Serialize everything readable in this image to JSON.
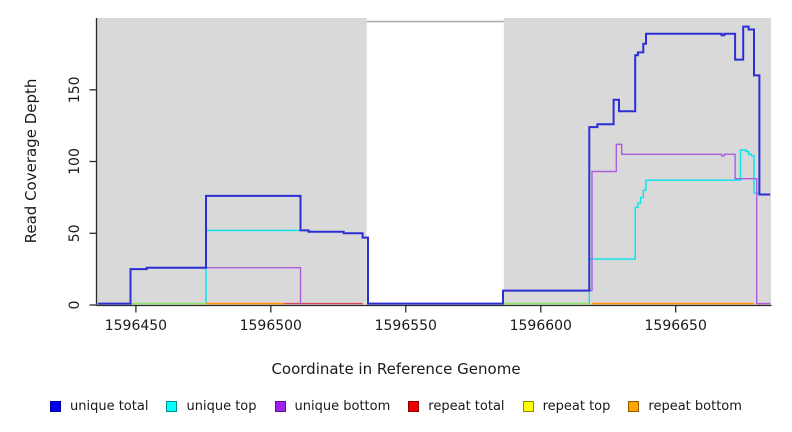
{
  "chart_data": {
    "type": "line",
    "subtype": "step-coverage",
    "title": "",
    "xlabel": "Coordinate in Reference Genome",
    "ylabel": "Read Coverage Depth",
    "xlim": [
      1596435.6,
      1596685.3
    ],
    "ylim": [
      0,
      200
    ],
    "x_ticks": [
      1596450,
      1596500,
      1596550,
      1596600,
      1596650
    ],
    "y_ticks": [
      0,
      50,
      100,
      150
    ],
    "grid": false,
    "legend_position": "bottom",
    "plot_bg": "#ffffff",
    "shaded_region_color": "#d9d9d9",
    "shaded_regions": [
      {
        "start": 1596435.6,
        "end": 1596535.5
      },
      {
        "start": 1596586.3,
        "end": 1596685.3
      }
    ],
    "gap_top_line": {
      "start": 1596535.5,
      "end": 1596586.3,
      "value": 197.5,
      "color": "#b0b0b0"
    },
    "axis_color": "#2b2b2b",
    "series": [
      {
        "name": "unique top",
        "color": "#00e6ee",
        "width": 1.4,
        "opacity": 1,
        "segments": [
          [
            [
              1596448,
              1
            ],
            [
              1596476,
              52
            ],
            [
              1596514,
              51
            ],
            [
              1596527,
              50
            ],
            [
              1596534,
              47
            ],
            [
              1596536,
              1
            ],
            [
              1596618,
              32
            ],
            [
              1596635,
              68
            ],
            [
              1596636,
              71
            ],
            [
              1596637,
              75
            ],
            [
              1596638,
              80
            ],
            [
              1596639,
              87
            ],
            [
              1596674,
              108
            ],
            [
              1596676,
              107
            ],
            [
              1596677,
              105
            ],
            [
              1596678,
              104
            ],
            [
              1596679,
              78
            ],
            [
              1596681,
              77
            ],
            [
              1596685,
              77
            ]
          ]
        ]
      },
      {
        "name": "repeat top",
        "color": "#f2e400",
        "width": 1.5,
        "opacity": 0.6,
        "segments": [
          [
            [
              1596448,
              1
            ],
            [
              1596476,
              1
            ]
          ],
          [
            [
              1596586,
              1
            ],
            [
              1596618,
              1
            ]
          ]
        ]
      },
      {
        "name": "repeat bottom",
        "color": "#ff9000",
        "width": 1.6,
        "opacity": 1,
        "segments": [
          [
            [
              1596476,
              1
            ],
            [
              1596505,
              1
            ]
          ],
          [
            [
              1596619,
              1
            ],
            [
              1596679,
              1
            ]
          ]
        ]
      },
      {
        "name": "repeat total",
        "color": "#d6455a",
        "width": 1.4,
        "opacity": 1,
        "segments": [
          [
            [
              1596505,
              1
            ],
            [
              1596534,
              1
            ]
          ],
          [
            [
              1596680,
              1
            ],
            [
              1596685,
              1
            ]
          ]
        ]
      },
      {
        "name": "unique bottom",
        "color": "#ab5cdb",
        "width": 1.4,
        "opacity": 1,
        "segments": [
          [
            [
              1596476,
              26
            ],
            [
              1596511,
              1
            ]
          ],
          [
            [
              1596586,
              10
            ],
            [
              1596619,
              93
            ],
            [
              1596628,
              112
            ],
            [
              1596630,
              105
            ],
            [
              1596667,
              104
            ],
            [
              1596668,
              105
            ],
            [
              1596672,
              88
            ],
            [
              1596680,
              1
            ],
            [
              1596685,
              1
            ]
          ]
        ]
      },
      {
        "name": "unique total",
        "color": "#2d2dd4",
        "width": 2,
        "opacity": 1,
        "segments": [
          [
            [
              1596436,
              1
            ],
            [
              1596448,
              25
            ],
            [
              1596454,
              26
            ],
            [
              1596476,
              76
            ],
            [
              1596511,
              52
            ],
            [
              1596514,
              51
            ],
            [
              1596527,
              50
            ],
            [
              1596534,
              47
            ],
            [
              1596536,
              1
            ],
            [
              1596586,
              10
            ],
            [
              1596618,
              124
            ],
            [
              1596621,
              126
            ],
            [
              1596627,
              143
            ],
            [
              1596629,
              135
            ],
            [
              1596635,
              174
            ],
            [
              1596636,
              176
            ],
            [
              1596638,
              182
            ],
            [
              1596639,
              189
            ],
            [
              1596667,
              188
            ],
            [
              1596668,
              189
            ],
            [
              1596672,
              171
            ],
            [
              1596675,
              194
            ],
            [
              1596677,
              192
            ],
            [
              1596679,
              160
            ],
            [
              1596681,
              77
            ],
            [
              1596685,
              77
            ]
          ]
        ]
      }
    ],
    "legend": [
      {
        "label": "unique total",
        "fill": "#0000ee",
        "border": "#00009a"
      },
      {
        "label": "unique top",
        "fill": "#00ffff",
        "border": "#008b8b"
      },
      {
        "label": "unique bottom",
        "fill": "#a020f0",
        "border": "#551a8b"
      },
      {
        "label": "repeat total",
        "fill": "#ee0000",
        "border": "#8b0000"
      },
      {
        "label": "repeat top",
        "fill": "#ffff00",
        "border": "#8b8b00"
      },
      {
        "label": "repeat bottom",
        "fill": "#ffa500",
        "border": "#8b5a00"
      }
    ]
  }
}
